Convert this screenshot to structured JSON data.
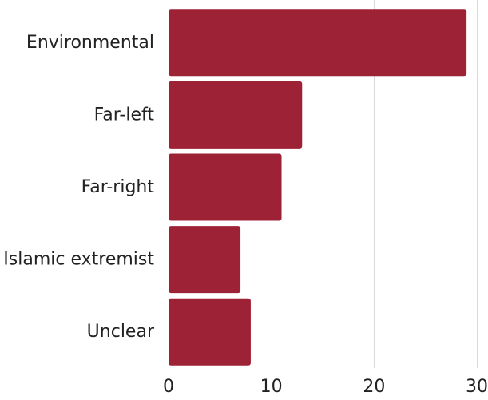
{
  "chart_data": {
    "type": "bar",
    "orientation": "horizontal",
    "categories": [
      "Environmental",
      "Far-left",
      "Far-right",
      "Islamic extremist",
      "Unclear"
    ],
    "values": [
      29,
      13,
      11,
      7,
      8
    ],
    "xlim": [
      0,
      30
    ],
    "xticks": [
      0,
      10,
      20,
      30
    ],
    "xtick_labels": [
      "0",
      "10",
      "20",
      "30"
    ],
    "grid": "vertical",
    "bar_color": "#9e2235",
    "grid_color": "#d9d9d9"
  }
}
